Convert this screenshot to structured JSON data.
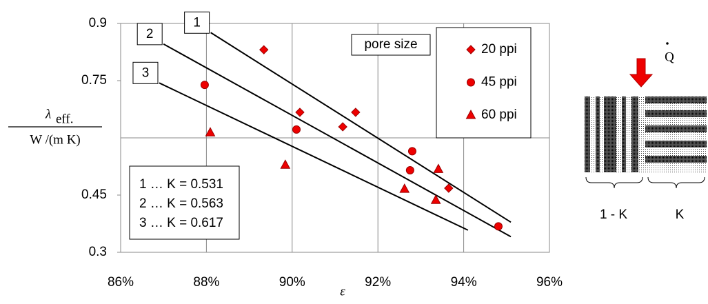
{
  "chart_data": {
    "type": "scatter",
    "x_label": "ε",
    "y_label": {
      "symbol": "λ",
      "subscript": "eff.",
      "denominator": "W /(m K)"
    },
    "xlim": [
      86,
      96
    ],
    "ylim": [
      0.3,
      0.9
    ],
    "xticks": [
      {
        "value": 86,
        "label": "86%"
      },
      {
        "value": 88,
        "label": "88%"
      },
      {
        "value": 90,
        "label": "90%"
      },
      {
        "value": 92,
        "label": "92%"
      },
      {
        "value": 94,
        "label": "94%"
      },
      {
        "value": 96,
        "label": "96%"
      }
    ],
    "yticks": [
      0.3,
      0.45,
      0.75,
      0.9
    ],
    "y_gridlines": [
      0.6
    ],
    "grid": true,
    "legend_title": "pore size",
    "series": [
      {
        "name": "20 ppi",
        "marker": "diamond",
        "color": "#ee0000",
        "x": [
          89.34,
          90.18,
          91.48,
          91.18,
          93.65
        ],
        "values": [
          0.831,
          0.667,
          0.667,
          0.629,
          0.468
        ]
      },
      {
        "name": "45 ppi",
        "marker": "circle",
        "color": "#ee0000",
        "x": [
          87.96,
          90.1,
          92.8,
          92.75,
          94.81
        ],
        "values": [
          0.739,
          0.622,
          0.565,
          0.515,
          0.368
        ]
      },
      {
        "name": "60 ppi",
        "marker": "triangle",
        "color": "#ee0000",
        "x": [
          88.09,
          89.84,
          92.62,
          93.41,
          93.35
        ],
        "values": [
          0.614,
          0.529,
          0.466,
          0.518,
          0.437
        ]
      }
    ],
    "lines": [
      {
        "label": "1",
        "x": [
          88.1,
          95.1
        ],
        "y": [
          0.876,
          0.379
        ]
      },
      {
        "label": "2",
        "x": [
          87,
          95.1
        ],
        "y": [
          0.846,
          0.341
        ]
      },
      {
        "label": "3",
        "x": [
          86.9,
          94.1
        ],
        "y": [
          0.744,
          0.358
        ]
      }
    ],
    "k_labels": [
      "1 … K = 0.531",
      "2 … K = 0.563",
      "3 … K = 0.617"
    ]
  },
  "diagram": {
    "flux_label": "Q",
    "left_label": "1 - K",
    "right_label": "K"
  }
}
